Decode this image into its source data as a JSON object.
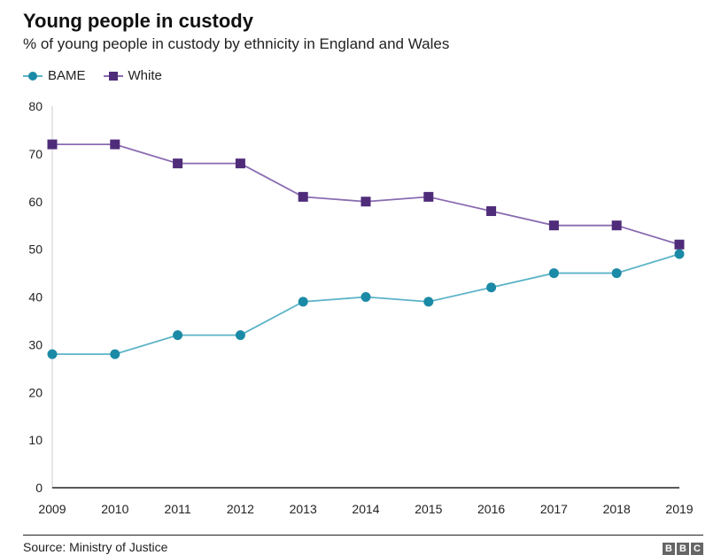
{
  "header": {
    "title": "Young people in custody",
    "subtitle": "% of young people in custody by ethnicity in England and Wales"
  },
  "footer": {
    "source": "Source: Ministry of Justice",
    "logo_text": "BBC"
  },
  "colors": {
    "bame": "#1b8aa6",
    "bame_line": "#5bb3c7",
    "white": "#4f2c7a",
    "white_line": "#8a6bb1",
    "axis": "#222222"
  },
  "chart_data": {
    "type": "line",
    "title": "Young people in custody",
    "subtitle": "% of young people in custody by ethnicity in England and Wales",
    "xlabel": "",
    "ylabel": "",
    "x": [
      "2009",
      "2010",
      "2011",
      "2012",
      "2013",
      "2014",
      "2015",
      "2016",
      "2017",
      "2018",
      "2019"
    ],
    "y_ticks": [
      "0",
      "10",
      "20",
      "30",
      "40",
      "50",
      "60",
      "70",
      "80"
    ],
    "ylim": [
      0,
      80
    ],
    "grid": false,
    "legend_position": "top-left",
    "series": [
      {
        "name": "BAME",
        "marker": "circle",
        "values": [
          28,
          28,
          32,
          32,
          39,
          40,
          39,
          42,
          45,
          45,
          49
        ]
      },
      {
        "name": "White",
        "marker": "square",
        "values": [
          72,
          72,
          68,
          68,
          61,
          60,
          61,
          58,
          55,
          55,
          51
        ]
      }
    ]
  }
}
